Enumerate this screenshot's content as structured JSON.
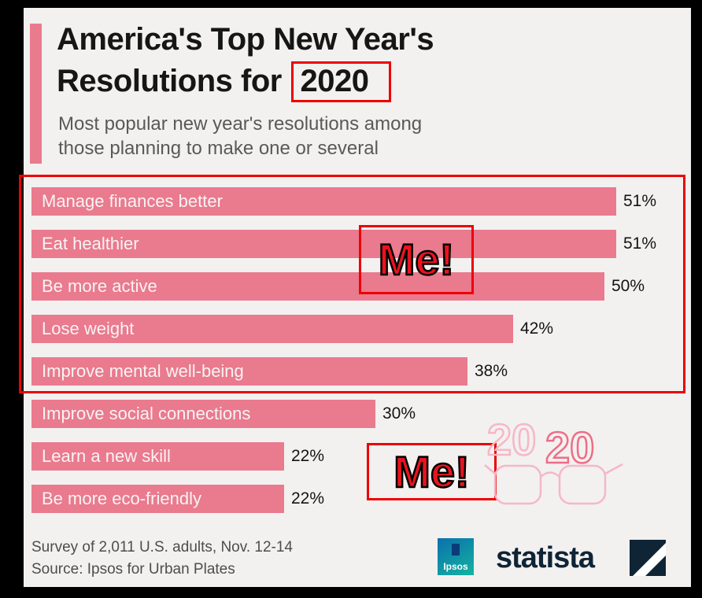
{
  "header": {
    "title_line1": "America's Top New Year's",
    "title_line2_prefix": "Resolutions for",
    "title_year": "2020",
    "subtitle_line1": "Most popular new year's resolutions among",
    "subtitle_line2": "those planning to make one or several"
  },
  "chart_data": {
    "type": "bar",
    "orientation": "horizontal",
    "title": "America's Top New Year's Resolutions for 2020",
    "subtitle": "Most popular new year's resolutions among those planning to make one or several",
    "categories": [
      "Manage finances better",
      "Eat healthier",
      "Be more active",
      "Lose weight",
      "Improve mental well-being",
      "Improve social connections",
      "Learn a new skill",
      "Be more eco-friendly"
    ],
    "values": [
      51,
      51,
      50,
      42,
      38,
      30,
      22,
      22
    ],
    "value_labels": [
      "51%",
      "51%",
      "50%",
      "42%",
      "38%",
      "30%",
      "22%",
      "22%"
    ],
    "unit": "%",
    "xlim": [
      0,
      55
    ],
    "grid": false,
    "legend": false,
    "bar_color": "#ea7a8e"
  },
  "annotations": {
    "me_top": "Me!",
    "me_bottom": "Me!",
    "boxed_year": "2020",
    "boxed_bars": [
      "Manage finances better",
      "Eat healthier",
      "Be more active",
      "Lose weight",
      "Improve mental well-being"
    ]
  },
  "graphic": {
    "year_part1": "20",
    "year_part2": "20"
  },
  "footer": {
    "survey_line1": "Survey of 2,011 U.S. adults, Nov. 12-14",
    "survey_line2": "Source: Ipsos for Urban Plates",
    "ipsos_label": "Ipsos",
    "statista_label": "statista"
  },
  "colors": {
    "bar": "#ea7a8e",
    "annotation_red": "#ee0000",
    "statista_navy": "#0f2435",
    "card_bg": "#f2f1f0",
    "glasses_light_pink": "#f6b7c6",
    "glasses_dark_pink": "#ef6d87"
  }
}
